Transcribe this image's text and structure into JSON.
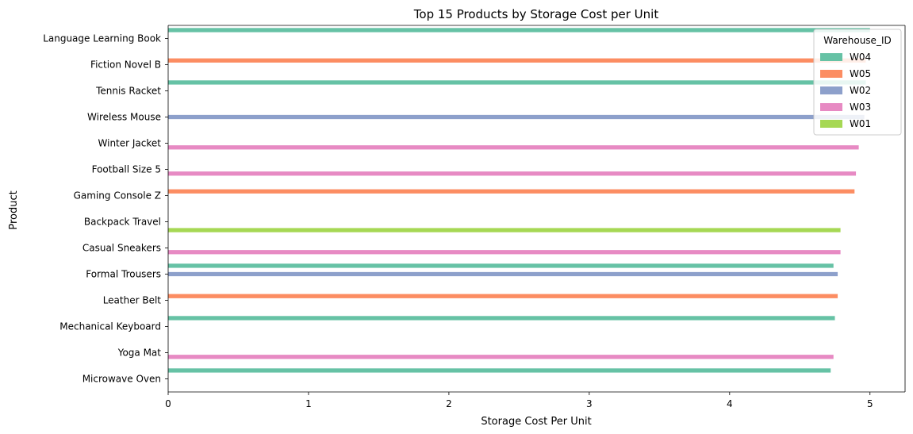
{
  "chart_data": {
    "type": "bar",
    "orientation": "horizontal",
    "title": "Top 15 Products by Storage Cost per Unit",
    "xlabel": "Storage Cost Per Unit",
    "ylabel": "Product",
    "xlim": [
      0,
      5.25
    ],
    "xticks": [
      0,
      1,
      2,
      3,
      4,
      5
    ],
    "grid": false,
    "legend": {
      "title": "Warehouse_ID",
      "placement": "top-right"
    },
    "categories": [
      "Language Learning Book",
      "Fiction Novel B",
      "Tennis Racket",
      "Wireless Mouse",
      "Winter Jacket",
      "Football Size 5",
      "Gaming Console Z",
      "Backpack Travel",
      "Casual Sneakers",
      "Formal Trousers",
      "Leather Belt",
      "Mechanical Keyboard",
      "Yoga Mat",
      "Microwave Oven"
    ],
    "series": [
      {
        "name": "W04",
        "color": "#66c2a5",
        "values": [
          5.0,
          null,
          4.97,
          null,
          null,
          null,
          null,
          null,
          null,
          4.74,
          null,
          4.75,
          null,
          4.72
        ]
      },
      {
        "name": "W05",
        "color": "#fc8d62",
        "values": [
          null,
          4.97,
          null,
          null,
          null,
          null,
          4.89,
          null,
          null,
          null,
          4.77,
          null,
          null,
          null
        ]
      },
      {
        "name": "W02",
        "color": "#8da0cb",
        "values": [
          null,
          null,
          null,
          4.96,
          null,
          null,
          null,
          null,
          null,
          4.77,
          null,
          null,
          null,
          null
        ]
      },
      {
        "name": "W03",
        "color": "#e78ac3",
        "values": [
          null,
          null,
          null,
          null,
          4.92,
          4.9,
          null,
          null,
          4.79,
          null,
          null,
          null,
          4.74,
          null
        ]
      },
      {
        "name": "W01",
        "color": "#a6d854",
        "values": [
          null,
          null,
          null,
          null,
          null,
          null,
          null,
          4.79,
          null,
          null,
          null,
          null,
          null,
          null
        ]
      }
    ]
  }
}
